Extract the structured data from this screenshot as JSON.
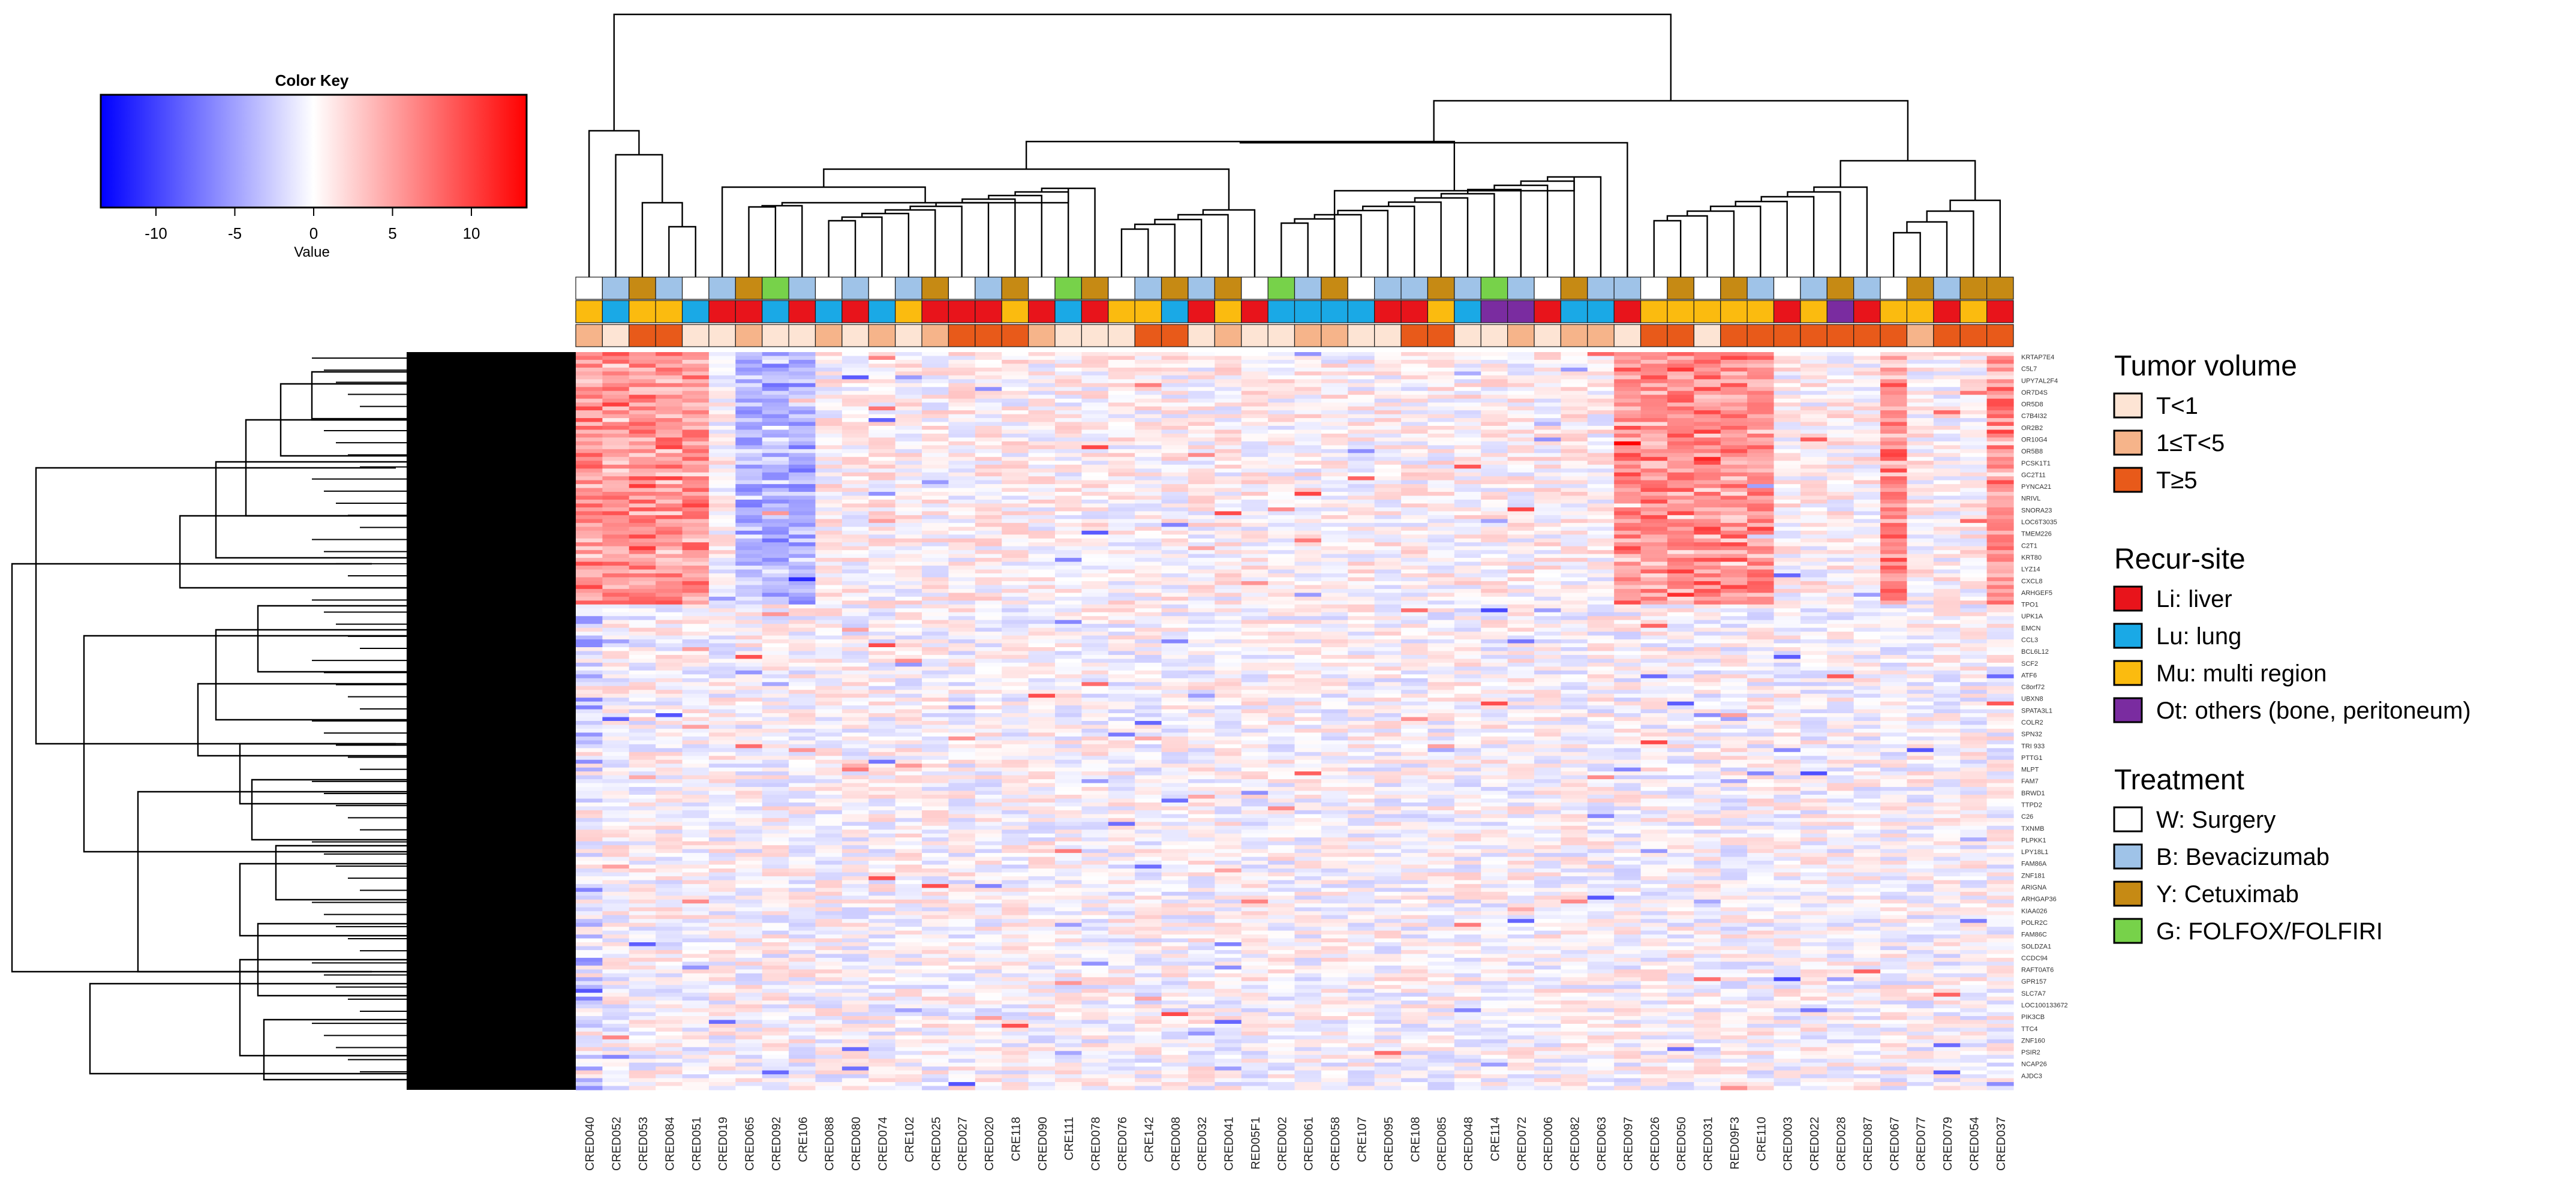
{
  "chart_data": {
    "type": "heatmap",
    "title": "",
    "color_key": {
      "title": "Color Key",
      "xlabel": "Value",
      "ticks": [
        -10,
        -5,
        0,
        5,
        10
      ],
      "range": [
        -13.5,
        13.5
      ],
      "colors": {
        "low": "#0000ff",
        "mid": "#ffffff",
        "high": "#ff0000"
      }
    },
    "samples": [
      "CRED040",
      "CRED052",
      "CRED053",
      "CRED084",
      "CRED051",
      "CRED019",
      "CRED065",
      "CRED092",
      "CRE106",
      "CRED088",
      "CRED080",
      "CRED074",
      "CRE102",
      "CRED025",
      "CRED027",
      "CRED020",
      "CRE118",
      "CRED090",
      "CRE111",
      "CRED078",
      "CRED076",
      "CRE142",
      "CRED008",
      "CRED032",
      "CRED041",
      "RED05F1",
      "CRED002",
      "CRED061",
      "CRED058",
      "CRE107",
      "CRED095",
      "CRE108",
      "CRED085",
      "CRED048",
      "CRE114",
      "CRED072",
      "CRED006",
      "CRED082",
      "CRED063",
      "CRED097",
      "CRED026",
      "CRED050",
      "CRED031",
      "RED09F3",
      "CRE110",
      "CRED003",
      "CRED022",
      "CRED028",
      "CRED087",
      "CRED067",
      "CRED077",
      "CRED079",
      "CRED054",
      "CRED037"
    ],
    "treatment_codes": [
      "W",
      "B",
      "Y",
      "B",
      "W",
      "B",
      "Y",
      "G",
      "B",
      "W",
      "B",
      "W",
      "B",
      "Y",
      "W",
      "B",
      "Y",
      "W",
      "G",
      "Y",
      "W",
      "B",
      "Y",
      "B",
      "Y",
      "W",
      "G",
      "B",
      "Y",
      "W",
      "B",
      "B",
      "Y",
      "B",
      "G",
      "B",
      "W",
      "Y",
      "B",
      "B",
      "W",
      "Y",
      "W",
      "Y",
      "B",
      "W",
      "B",
      "Y",
      "B",
      "W",
      "Y",
      "B",
      "Y",
      "Y"
    ],
    "recur_site_codes": [
      "Mu",
      "Lu",
      "Mu",
      "Mu",
      "Lu",
      "Li",
      "Li",
      "Lu",
      "Li",
      "Lu",
      "Li",
      "Lu",
      "Mu",
      "Li",
      "Li",
      "Li",
      "Mu",
      "Li",
      "Lu",
      "Li",
      "Mu",
      "Mu",
      "Lu",
      "Li",
      "Mu",
      "Li",
      "Lu",
      "Lu",
      "Lu",
      "Lu",
      "Li",
      "Li",
      "Mu",
      "Lu",
      "Ot",
      "Ot",
      "Li",
      "Lu",
      "Lu",
      "Li",
      "Mu",
      "Mu",
      "Mu",
      "Mu",
      "Mu",
      "Li",
      "Mu",
      "Ot",
      "Li",
      "Mu",
      "Mu",
      "Li",
      "Mu",
      "Li"
    ],
    "tumor_volume_codes": [
      "M",
      "L",
      "H",
      "H",
      "L",
      "L",
      "M",
      "L",
      "L",
      "M",
      "L",
      "M",
      "L",
      "M",
      "H",
      "H",
      "H",
      "M",
      "L",
      "L",
      "L",
      "H",
      "H",
      "L",
      "M",
      "L",
      "L",
      "M",
      "M",
      "L",
      "L",
      "H",
      "H",
      "L",
      "L",
      "M",
      "L",
      "M",
      "M",
      "L",
      "H",
      "H",
      "L",
      "H",
      "H",
      "H",
      "H",
      "H",
      "H",
      "H",
      "M",
      "H",
      "H",
      "H"
    ],
    "gene_labels": [
      "KRTAP7E4",
      "C5L7",
      "UPY7AL2F4",
      "OR7D4S",
      "OR5D8",
      "C7B4I32",
      "OR2B2",
      "OR10G4",
      "OR5B8",
      "PCSK1T1",
      "GC2T11",
      "PYNCA21",
      "NRIVL",
      "SNORA23",
      "LOC6T3035",
      "TMEM226",
      "C2T1",
      "KRT80",
      "LYZ14",
      "CXCL8",
      "ARHGEF5",
      "TPO1",
      "UPK1A",
      "EMCN",
      "CCL3",
      "BCL6L12",
      "SCF2",
      "ATF6",
      "C8orf72",
      "UBXN8",
      "SPATA3L1",
      "COLR2",
      "SPN32",
      "TRI 933",
      "PTTG1",
      "MLPT",
      "FAM7",
      "BRWD1",
      "TTPD2",
      "C26",
      "TXNMB",
      "PLPKK1",
      "LPY18L1",
      "FAM86A",
      "ZNF181",
      "ARIGNA",
      "ARHGAP36",
      "KIAA026",
      "POLR2C",
      "FAM86C",
      "SOLDZA1",
      "CCDC94",
      "RAFT0AT6",
      "GPR157",
      "SLC7A7",
      "LOC100133672",
      "PIK3CB",
      "TTC4",
      "ZNF160",
      "PSIR2",
      "NCAP26",
      "AJDC3"
    ],
    "legend": {
      "tumor_volume": {
        "title": "Tumor volume",
        "items": [
          {
            "code": "L",
            "label": "T<1",
            "color": "#fde4d4"
          },
          {
            "code": "M",
            "label": "1≤T<5",
            "color": "#f6b48a"
          },
          {
            "code": "H",
            "label": "T≥5",
            "color": "#e85a1a"
          }
        ]
      },
      "recur_site": {
        "title": "Recur-site",
        "items": [
          {
            "code": "Li",
            "label": "Li: liver",
            "color": "#e8141b"
          },
          {
            "code": "Lu",
            "label": "Lu: lung",
            "color": "#1aa9e6"
          },
          {
            "code": "Mu",
            "label": "Mu: multi region",
            "color": "#fbbb0f"
          },
          {
            "code": "Ot",
            "label": "Ot: others (bone, peritoneum)",
            "color": "#7a2ca0"
          }
        ]
      },
      "treatment": {
        "title": "Treatment",
        "items": [
          {
            "code": "W",
            "label": "W: Surgery",
            "color": "#ffffff"
          },
          {
            "code": "B",
            "label": "B: Bevacizumab",
            "color": "#9fc3e8"
          },
          {
            "code": "Y",
            "label": "Y: Cetuximab",
            "color": "#c68a14"
          },
          {
            "code": "G",
            "label": "G: FOLFOX/FOLFIRI",
            "color": "#77d24a"
          }
        ]
      }
    },
    "heatmap_rows": 190,
    "dendrogram_color": "#000000"
  }
}
